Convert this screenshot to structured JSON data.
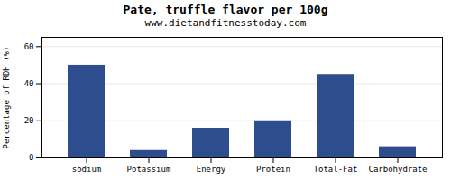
{
  "chart_data": {
    "type": "bar",
    "title": "Pate, truffle flavor per 100g",
    "subtitle": "www.dietandfitnesstoday.com",
    "categories": [
      "sodium",
      "Potassium",
      "Energy",
      "Protein",
      "Total-Fat",
      "Carbohydrate"
    ],
    "values": [
      50,
      4,
      16,
      20,
      45,
      6
    ],
    "color": "#2e4d8e",
    "ylabel": "Percentage of RDH (%)",
    "ylim": [
      0,
      65
    ],
    "yticks": [
      0,
      20,
      40,
      60
    ],
    "grid": true
  }
}
